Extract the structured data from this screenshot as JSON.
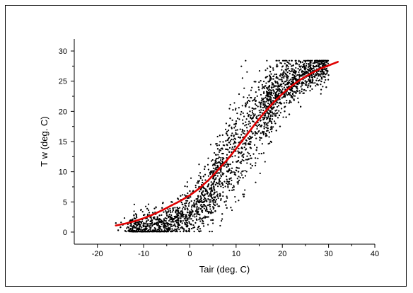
{
  "chart_data": {
    "type": "scatter",
    "title": "",
    "xlabel": "Tair (deg. C)",
    "ylabel": "T w (deg. C)",
    "xlim": [
      -25,
      40
    ],
    "ylim": [
      -2,
      32
    ],
    "xticks": [
      -20,
      -10,
      0,
      10,
      20,
      30,
      40
    ],
    "yticks": [
      0,
      5,
      10,
      15,
      20,
      25,
      30
    ],
    "grid": false,
    "legend": "none",
    "colors": {
      "points": "#000000",
      "fit_curve": "#e00000",
      "axes": "#000000"
    },
    "series": [
      {
        "type": "scatter",
        "description_note": "",
        "points": [
          [
            -16,
            1.5
          ],
          [
            -15.5,
            0.3
          ],
          [
            -15,
            0.8
          ],
          [
            -14.5,
            1.2
          ],
          [
            -14,
            0.2
          ],
          [
            -13,
            1.8
          ],
          [
            -12.5,
            0.6
          ],
          [
            -12,
            2.3
          ],
          [
            -11.5,
            1.0
          ],
          [
            -11,
            0.4
          ],
          [
            -10.5,
            1.6
          ],
          [
            -10,
            2.8
          ],
          [
            -9.5,
            0.9
          ],
          [
            -9,
            2.0
          ],
          [
            -8.5,
            0.5
          ],
          [
            -8,
            3.2
          ],
          [
            -7.5,
            1.4
          ],
          [
            -7,
            2.5
          ],
          [
            -6.5,
            0.8
          ],
          [
            -6,
            4.0
          ],
          [
            -5.5,
            1.9
          ],
          [
            -5,
            3.0
          ],
          [
            -4.5,
            0.6
          ],
          [
            -4,
            5.0
          ],
          [
            -3.5,
            2.2
          ],
          [
            -3,
            3.6
          ],
          [
            -2.5,
            1.1
          ],
          [
            -2,
            6.0
          ],
          [
            -1.5,
            2.8
          ],
          [
            -1,
            4.4
          ],
          [
            -0.5,
            1.5
          ],
          [
            0,
            6.8
          ],
          [
            0.5,
            3.5
          ],
          [
            1,
            5.2
          ],
          [
            1.5,
            2.0
          ],
          [
            2,
            7.5
          ],
          [
            2.5,
            4.2
          ],
          [
            3,
            6.0
          ],
          [
            3.5,
            2.5
          ],
          [
            4,
            8.5
          ],
          [
            4.5,
            5.0
          ],
          [
            5,
            9.5
          ],
          [
            5.5,
            3.5
          ],
          [
            6,
            11.0
          ],
          [
            6.5,
            6.0
          ],
          [
            7,
            13.0
          ],
          [
            7.5,
            5.0
          ],
          [
            8,
            14.5
          ],
          [
            8.5,
            8.0
          ],
          [
            9,
            16.0
          ],
          [
            9.5,
            7.0
          ],
          [
            10,
            18.0
          ],
          [
            10.5,
            10.0
          ],
          [
            11,
            19.5
          ],
          [
            11.5,
            9.0
          ],
          [
            12,
            21.0
          ],
          [
            12.5,
            12.0
          ],
          [
            13,
            20.0
          ],
          [
            13.5,
            11.0
          ],
          [
            14,
            22.0
          ],
          [
            14.5,
            14.0
          ],
          [
            15,
            21.5
          ],
          [
            15.5,
            13.0
          ],
          [
            16,
            23.0
          ],
          [
            16.5,
            16.0
          ],
          [
            17,
            24.0
          ],
          [
            17.5,
            15.0
          ],
          [
            18,
            24.5
          ],
          [
            18.5,
            18.0
          ],
          [
            19,
            25.5
          ],
          [
            19.5,
            17.5
          ],
          [
            20,
            26.0
          ],
          [
            20.5,
            20.0
          ],
          [
            21,
            27.0
          ],
          [
            21.5,
            19.5
          ],
          [
            22,
            27.5
          ],
          [
            22.5,
            22.0
          ],
          [
            23,
            28.0
          ],
          [
            23.5,
            21.5
          ],
          [
            24,
            27.0
          ],
          [
            24.5,
            23.0
          ],
          [
            25,
            28.2
          ],
          [
            25.5,
            24.0
          ],
          [
            26,
            27.5
          ],
          [
            26.5,
            25.0
          ],
          [
            27,
            28.0
          ],
          [
            27.5,
            24.5
          ],
          [
            28,
            27.0
          ],
          [
            28.5,
            25.5
          ],
          [
            29,
            26.5
          ],
          [
            29.5,
            24.0
          ],
          [
            30,
            26.0
          ],
          [
            -13,
            0.2
          ],
          [
            -8,
            0.3
          ],
          [
            -3,
            0.4
          ],
          [
            1,
            0.8
          ],
          [
            3,
            1.0
          ],
          [
            5,
            2.0
          ],
          [
            7,
            3.0
          ],
          [
            8,
            4.0
          ]
        ]
      },
      {
        "type": "line",
        "description_note": "",
        "x": [
          -16,
          -14,
          -12,
          -10,
          -8,
          -6,
          -4,
          -2,
          0,
          2,
          4,
          6,
          8,
          10,
          12,
          14,
          16,
          18,
          20,
          22,
          24,
          26,
          28,
          30,
          32
        ],
        "y": [
          1.1,
          1.4,
          1.8,
          2.3,
          2.9,
          3.6,
          4.4,
          5.2,
          6.1,
          7.2,
          8.6,
          10.2,
          11.9,
          13.8,
          15.8,
          17.8,
          19.7,
          21.4,
          22.9,
          24.2,
          25.3,
          26.2,
          27.0,
          27.6,
          28.2
        ]
      }
    ]
  }
}
